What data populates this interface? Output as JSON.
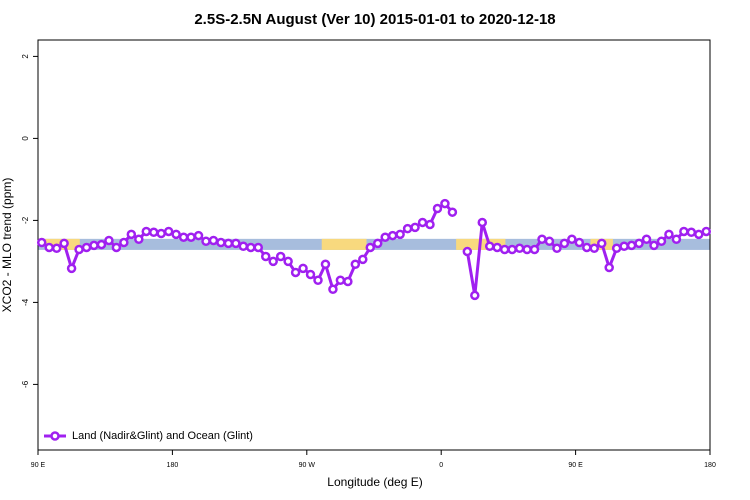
{
  "chart_data": {
    "type": "line",
    "title": "2.5S-2.5N August (Ver 10)   2015-01-01 to 2020-12-18",
    "x_label": "Longitude (deg E)",
    "y_label": "XCO2 - MLO trend (ppm)",
    "xlim": [
      90,
      540
    ],
    "xticks": [
      {
        "value": 90,
        "label": "90 E"
      },
      {
        "value": 180,
        "label": "180"
      },
      {
        "value": 270,
        "label": "90 W"
      },
      {
        "value": 360,
        "label": "0"
      },
      {
        "value": 450,
        "label": "90 E"
      },
      {
        "value": 540,
        "label": "180"
      }
    ],
    "ylim": [
      -7.6,
      2.4
    ],
    "yticks": [
      2,
      0,
      -2,
      -4,
      -6
    ],
    "legend": "bottom-left",
    "band": {
      "ylim": [
        -2.72,
        -2.45
      ],
      "color": "#a7bddd",
      "highlight_color": "#f8d97e",
      "highlights": [
        [
          95,
          118
        ],
        [
          280,
          310
        ],
        [
          370,
          403
        ],
        [
          460,
          475
        ]
      ]
    },
    "x": [
      92.5,
      97.5,
      102.5,
      107.5,
      112.5,
      117.5,
      122.5,
      127.5,
      132.5,
      137.5,
      142.5,
      147.5,
      152.5,
      157.5,
      162.5,
      167.5,
      172.5,
      177.5,
      182.5,
      187.5,
      192.5,
      197.5,
      202.5,
      207.5,
      212.5,
      217.5,
      222.5,
      227.5,
      232.5,
      237.5,
      242.5,
      247.5,
      252.5,
      257.5,
      262.5,
      267.5,
      272.5,
      277.5,
      282.5,
      287.5,
      292.5,
      297.5,
      302.5,
      307.5,
      312.5,
      317.5,
      322.5,
      327.5,
      332.5,
      337.5,
      342.5,
      347.5,
      352.5,
      357.5,
      362.5,
      367.5,
      372.5,
      377.5,
      382.5,
      387.5,
      392.5,
      397.5,
      402.5,
      407.5,
      412.5,
      417.5,
      422.5,
      427.5,
      432.5,
      437.5,
      442.5,
      447.5,
      452.5,
      457.5,
      462.5,
      467.5,
      472.5,
      477.5,
      482.5,
      487.5,
      492.5,
      497.5,
      502.5,
      507.5,
      512.5,
      517.5,
      522.5,
      527.5,
      532.5,
      537.5
    ],
    "series": [
      {
        "name": "Land (Nadir&Glint) and Ocean (Glint)",
        "color": "#a020f0",
        "values": [
          -2.54,
          -2.66,
          -2.68,
          -2.56,
          -3.17,
          -2.71,
          -2.66,
          -2.61,
          -2.59,
          -2.49,
          -2.66,
          -2.54,
          -2.34,
          -2.46,
          -2.27,
          -2.29,
          -2.32,
          -2.27,
          -2.34,
          -2.41,
          -2.41,
          -2.37,
          -2.51,
          -2.49,
          -2.54,
          -2.56,
          -2.56,
          -2.63,
          -2.66,
          -2.66,
          -2.88,
          -3.0,
          -2.88,
          -3.0,
          -3.27,
          -3.17,
          -3.32,
          -3.46,
          -3.07,
          -3.68,
          -3.46,
          -3.49,
          -3.07,
          -2.95,
          -2.66,
          -2.56,
          -2.41,
          -2.37,
          -2.34,
          -2.2,
          -2.17,
          -2.05,
          -2.1,
          -1.71,
          -1.59,
          -1.8,
          null,
          -2.76,
          -3.83,
          -2.05,
          -2.63,
          -2.66,
          -2.71,
          -2.71,
          -2.68,
          -2.71,
          -2.71,
          -2.46,
          -2.51,
          -2.68,
          -2.56,
          -2.46,
          -2.54,
          -2.66,
          -2.68,
          -2.56,
          -3.15,
          -2.68,
          -2.63,
          -2.61,
          -2.56,
          -2.46,
          -2.61,
          -2.51,
          -2.34,
          -2.46,
          -2.27,
          -2.29,
          -2.34,
          -2.27
        ]
      }
    ]
  }
}
